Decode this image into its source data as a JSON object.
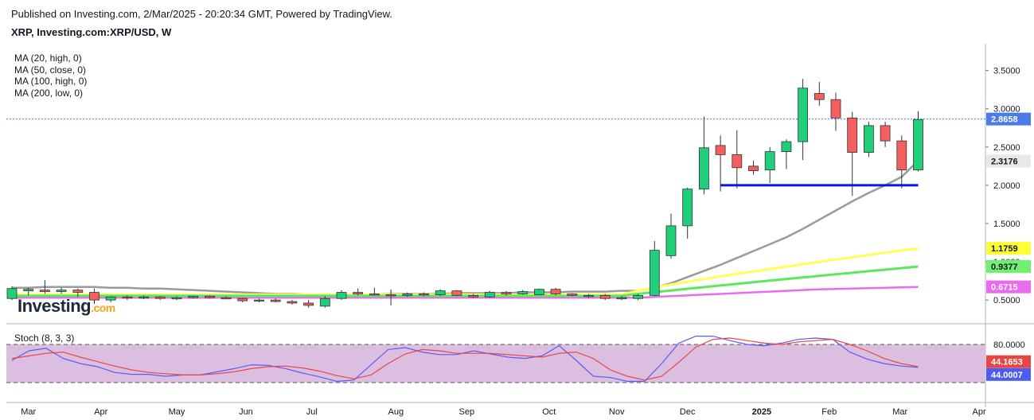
{
  "header": {
    "published": "Published on Investing.com, 2/Mar/2025 - 20:20:34 GMT, Powered by TradingView.",
    "symbol": "XRP, Investing.com:XRP/USD, W"
  },
  "ma_legend": [
    "MA (20, high, 0)",
    "MA (50, close, 0)",
    "MA (100, high, 0)",
    "MA (200, low, 0)"
  ],
  "logo": {
    "text": "Investing",
    "suffix": ".com"
  },
  "stoch": {
    "label": "Stoch (8, 3, 3)"
  },
  "chart_data": [
    {
      "type": "candlestick",
      "ylim": [
        0.2,
        3.85
      ],
      "y_ticks": [
        "3.5000",
        "3.0000",
        "2.5000",
        "2.0000",
        "1.5000",
        "1.0000",
        "0.5000"
      ],
      "y_tick_values": [
        3.5,
        3.0,
        2.5,
        2.0,
        1.5,
        1.0,
        0.5
      ],
      "x_labels": [
        "Mar",
        "Apr",
        "May",
        "Jun",
        "Jul",
        "Aug",
        "Sep",
        "Oct",
        "Nov",
        "Dec",
        "2025",
        "Feb",
        "Mar",
        "Apr"
      ],
      "x_label_index": [
        1,
        5.4,
        10,
        14.2,
        18.2,
        23.3,
        27.6,
        32.6,
        36.7,
        41,
        45.5,
        49.6,
        53.9,
        58.7
      ],
      "candles": [
        {
          "o": 0.52,
          "h": 0.68,
          "l": 0.5,
          "c": 0.65
        },
        {
          "o": 0.62,
          "h": 0.66,
          "l": 0.56,
          "c": 0.64
        },
        {
          "o": 0.63,
          "h": 0.76,
          "l": 0.58,
          "c": 0.61
        },
        {
          "o": 0.61,
          "h": 0.66,
          "l": 0.58,
          "c": 0.63
        },
        {
          "o": 0.63,
          "h": 0.65,
          "l": 0.54,
          "c": 0.6
        },
        {
          "o": 0.6,
          "h": 0.65,
          "l": 0.45,
          "c": 0.5
        },
        {
          "o": 0.5,
          "h": 0.55,
          "l": 0.47,
          "c": 0.54
        },
        {
          "o": 0.54,
          "h": 0.56,
          "l": 0.5,
          "c": 0.53
        },
        {
          "o": 0.53,
          "h": 0.56,
          "l": 0.51,
          "c": 0.54
        },
        {
          "o": 0.54,
          "h": 0.55,
          "l": 0.5,
          "c": 0.52
        },
        {
          "o": 0.52,
          "h": 0.55,
          "l": 0.5,
          "c": 0.53
        },
        {
          "o": 0.53,
          "h": 0.56,
          "l": 0.52,
          "c": 0.55
        },
        {
          "o": 0.55,
          "h": 0.56,
          "l": 0.52,
          "c": 0.53
        },
        {
          "o": 0.53,
          "h": 0.55,
          "l": 0.51,
          "c": 0.52
        },
        {
          "o": 0.52,
          "h": 0.53,
          "l": 0.47,
          "c": 0.49
        },
        {
          "o": 0.49,
          "h": 0.52,
          "l": 0.47,
          "c": 0.5
        },
        {
          "o": 0.5,
          "h": 0.52,
          "l": 0.47,
          "c": 0.48
        },
        {
          "o": 0.48,
          "h": 0.5,
          "l": 0.44,
          "c": 0.46
        },
        {
          "o": 0.46,
          "h": 0.5,
          "l": 0.4,
          "c": 0.43
        },
        {
          "o": 0.42,
          "h": 0.55,
          "l": 0.4,
          "c": 0.52
        },
        {
          "o": 0.52,
          "h": 0.63,
          "l": 0.5,
          "c": 0.6
        },
        {
          "o": 0.6,
          "h": 0.65,
          "l": 0.56,
          "c": 0.58
        },
        {
          "o": 0.58,
          "h": 0.66,
          "l": 0.56,
          "c": 0.57
        },
        {
          "o": 0.57,
          "h": 0.64,
          "l": 0.43,
          "c": 0.56
        },
        {
          "o": 0.56,
          "h": 0.6,
          "l": 0.54,
          "c": 0.58
        },
        {
          "o": 0.58,
          "h": 0.6,
          "l": 0.55,
          "c": 0.57
        },
        {
          "o": 0.57,
          "h": 0.64,
          "l": 0.55,
          "c": 0.62
        },
        {
          "o": 0.62,
          "h": 0.63,
          "l": 0.55,
          "c": 0.56
        },
        {
          "o": 0.56,
          "h": 0.58,
          "l": 0.53,
          "c": 0.54
        },
        {
          "o": 0.54,
          "h": 0.62,
          "l": 0.53,
          "c": 0.6
        },
        {
          "o": 0.6,
          "h": 0.62,
          "l": 0.56,
          "c": 0.58
        },
        {
          "o": 0.58,
          "h": 0.63,
          "l": 0.57,
          "c": 0.61
        },
        {
          "o": 0.57,
          "h": 0.65,
          "l": 0.56,
          "c": 0.64
        },
        {
          "o": 0.64,
          "h": 0.66,
          "l": 0.56,
          "c": 0.58
        },
        {
          "o": 0.58,
          "h": 0.59,
          "l": 0.55,
          "c": 0.56
        },
        {
          "o": 0.56,
          "h": 0.58,
          "l": 0.53,
          "c": 0.56
        },
        {
          "o": 0.56,
          "h": 0.58,
          "l": 0.5,
          "c": 0.52
        },
        {
          "o": 0.52,
          "h": 0.55,
          "l": 0.5,
          "c": 0.53
        },
        {
          "o": 0.52,
          "h": 0.58,
          "l": 0.5,
          "c": 0.56
        },
        {
          "o": 0.56,
          "h": 1.27,
          "l": 0.55,
          "c": 1.15
        },
        {
          "o": 1.08,
          "h": 1.63,
          "l": 1.04,
          "c": 1.47
        },
        {
          "o": 1.47,
          "h": 1.97,
          "l": 1.3,
          "c": 1.95
        },
        {
          "o": 1.95,
          "h": 2.9,
          "l": 1.88,
          "c": 2.49
        },
        {
          "o": 2.52,
          "h": 2.65,
          "l": 1.92,
          "c": 2.4
        },
        {
          "o": 2.4,
          "h": 2.72,
          "l": 1.96,
          "c": 2.23
        },
        {
          "o": 2.25,
          "h": 2.32,
          "l": 2.14,
          "c": 2.19
        },
        {
          "o": 2.2,
          "h": 2.5,
          "l": 2.03,
          "c": 2.44
        },
        {
          "o": 2.44,
          "h": 2.6,
          "l": 2.21,
          "c": 2.57
        },
        {
          "o": 2.57,
          "h": 3.39,
          "l": 2.33,
          "c": 3.27
        },
        {
          "o": 3.2,
          "h": 3.35,
          "l": 3.04,
          "c": 3.12
        },
        {
          "o": 3.12,
          "h": 3.21,
          "l": 2.71,
          "c": 2.88
        },
        {
          "o": 2.88,
          "h": 2.96,
          "l": 1.86,
          "c": 2.43
        },
        {
          "o": 2.43,
          "h": 2.83,
          "l": 2.37,
          "c": 2.78
        },
        {
          "o": 2.78,
          "h": 2.83,
          "l": 2.5,
          "c": 2.58
        },
        {
          "o": 2.58,
          "h": 2.65,
          "l": 1.96,
          "c": 2.2
        },
        {
          "o": 2.2,
          "h": 2.97,
          "l": 2.18,
          "c": 2.86
        }
      ],
      "moving_averages": [
        {
          "name": "MA (20, high, 0)",
          "color": "#9a9a9a",
          "last": 2.3176,
          "values": [
            0.66,
            0.66,
            0.67,
            0.67,
            0.67,
            0.67,
            0.66,
            0.66,
            0.65,
            0.65,
            0.64,
            0.63,
            0.62,
            0.61,
            0.6,
            0.59,
            0.58,
            0.58,
            0.57,
            0.57,
            0.57,
            0.57,
            0.57,
            0.58,
            0.58,
            0.58,
            0.58,
            0.59,
            0.59,
            0.59,
            0.59,
            0.6,
            0.6,
            0.6,
            0.61,
            0.61,
            0.61,
            0.62,
            0.62,
            0.66,
            0.72,
            0.8,
            0.88,
            0.96,
            1.05,
            1.14,
            1.23,
            1.32,
            1.43,
            1.55,
            1.67,
            1.79,
            1.9,
            2.0,
            2.11,
            2.32
          ]
        },
        {
          "name": "MA (200, low, 0)",
          "color": "#e86bf0",
          "last": 0.6715,
          "values": [
            0.53,
            0.53,
            0.53,
            0.53,
            0.53,
            0.53,
            0.53,
            0.53,
            0.53,
            0.53,
            0.53,
            0.53,
            0.53,
            0.53,
            0.53,
            0.53,
            0.53,
            0.53,
            0.53,
            0.53,
            0.53,
            0.53,
            0.53,
            0.53,
            0.53,
            0.53,
            0.53,
            0.53,
            0.53,
            0.53,
            0.53,
            0.53,
            0.53,
            0.53,
            0.53,
            0.53,
            0.53,
            0.53,
            0.53,
            0.54,
            0.55,
            0.56,
            0.57,
            0.58,
            0.59,
            0.6,
            0.61,
            0.62,
            0.63,
            0.64,
            0.645,
            0.65,
            0.655,
            0.66,
            0.665,
            0.6715
          ]
        }
      ],
      "price_labels": [
        {
          "text": "2.8658",
          "value": 2.8658,
          "bg": "#4c7be8",
          "fg": "#ffffff"
        },
        {
          "text": "2.3176",
          "value": 2.3176,
          "bg": "#e8e8e8",
          "fg": "#131722"
        },
        {
          "text": "1.1759",
          "value": 1.1759,
          "bg": "#ffff33",
          "fg": "#131722"
        },
        {
          "text": "0.9377",
          "value": 0.9377,
          "bg": "#6ff06f",
          "fg": "#131722"
        },
        {
          "text": "0.6715",
          "value": 0.6715,
          "bg": "#e86bf0",
          "fg": "#ffffff"
        }
      ],
      "support_level": {
        "value": 2.0,
        "from_index": 43,
        "to_index": 55,
        "color": "#0a14e8"
      },
      "last_price_line": 2.8658
    },
    {
      "type": "line",
      "ylim": [
        -10,
        110
      ],
      "y_ticks": [
        "80.0000"
      ],
      "levels": [
        80,
        20
      ],
      "series": [
        {
          "name": "%K",
          "color": "#5b5bf0",
          "last": 44.0007,
          "values": [
            55,
            70,
            74,
            58,
            50,
            45,
            36,
            33,
            33,
            30,
            32,
            32,
            37,
            42,
            48,
            47,
            42,
            35,
            29,
            22,
            24,
            48,
            72,
            75,
            68,
            64,
            64,
            70,
            65,
            60,
            58,
            62,
            78,
            55,
            30,
            28,
            22,
            22,
            50,
            82,
            93,
            93,
            86,
            80,
            78,
            82,
            88,
            90,
            88,
            68,
            57,
            50,
            46,
            44
          ]
        },
        {
          "name": "%D",
          "color": "#e84545",
          "last": 44.1653,
          "values": [
            58,
            62,
            66,
            68,
            60,
            53,
            46,
            40,
            36,
            34,
            32,
            32,
            34,
            37,
            42,
            45,
            46,
            43,
            38,
            31,
            26,
            32,
            50,
            65,
            72,
            70,
            66,
            66,
            66,
            64,
            62,
            60,
            66,
            68,
            58,
            40,
            30,
            24,
            30,
            52,
            76,
            88,
            90,
            86,
            82,
            80,
            84,
            86,
            88,
            80,
            70,
            58,
            50,
            45
          ]
        }
      ],
      "price_labels": [
        {
          "text": "44.1653",
          "value": 44.1653,
          "bg": "#e84545",
          "fg": "#ffffff"
        },
        {
          "text": "44.0007",
          "value": 44.0007,
          "bg": "#4c5cf0",
          "fg": "#ffffff"
        }
      ]
    }
  ]
}
